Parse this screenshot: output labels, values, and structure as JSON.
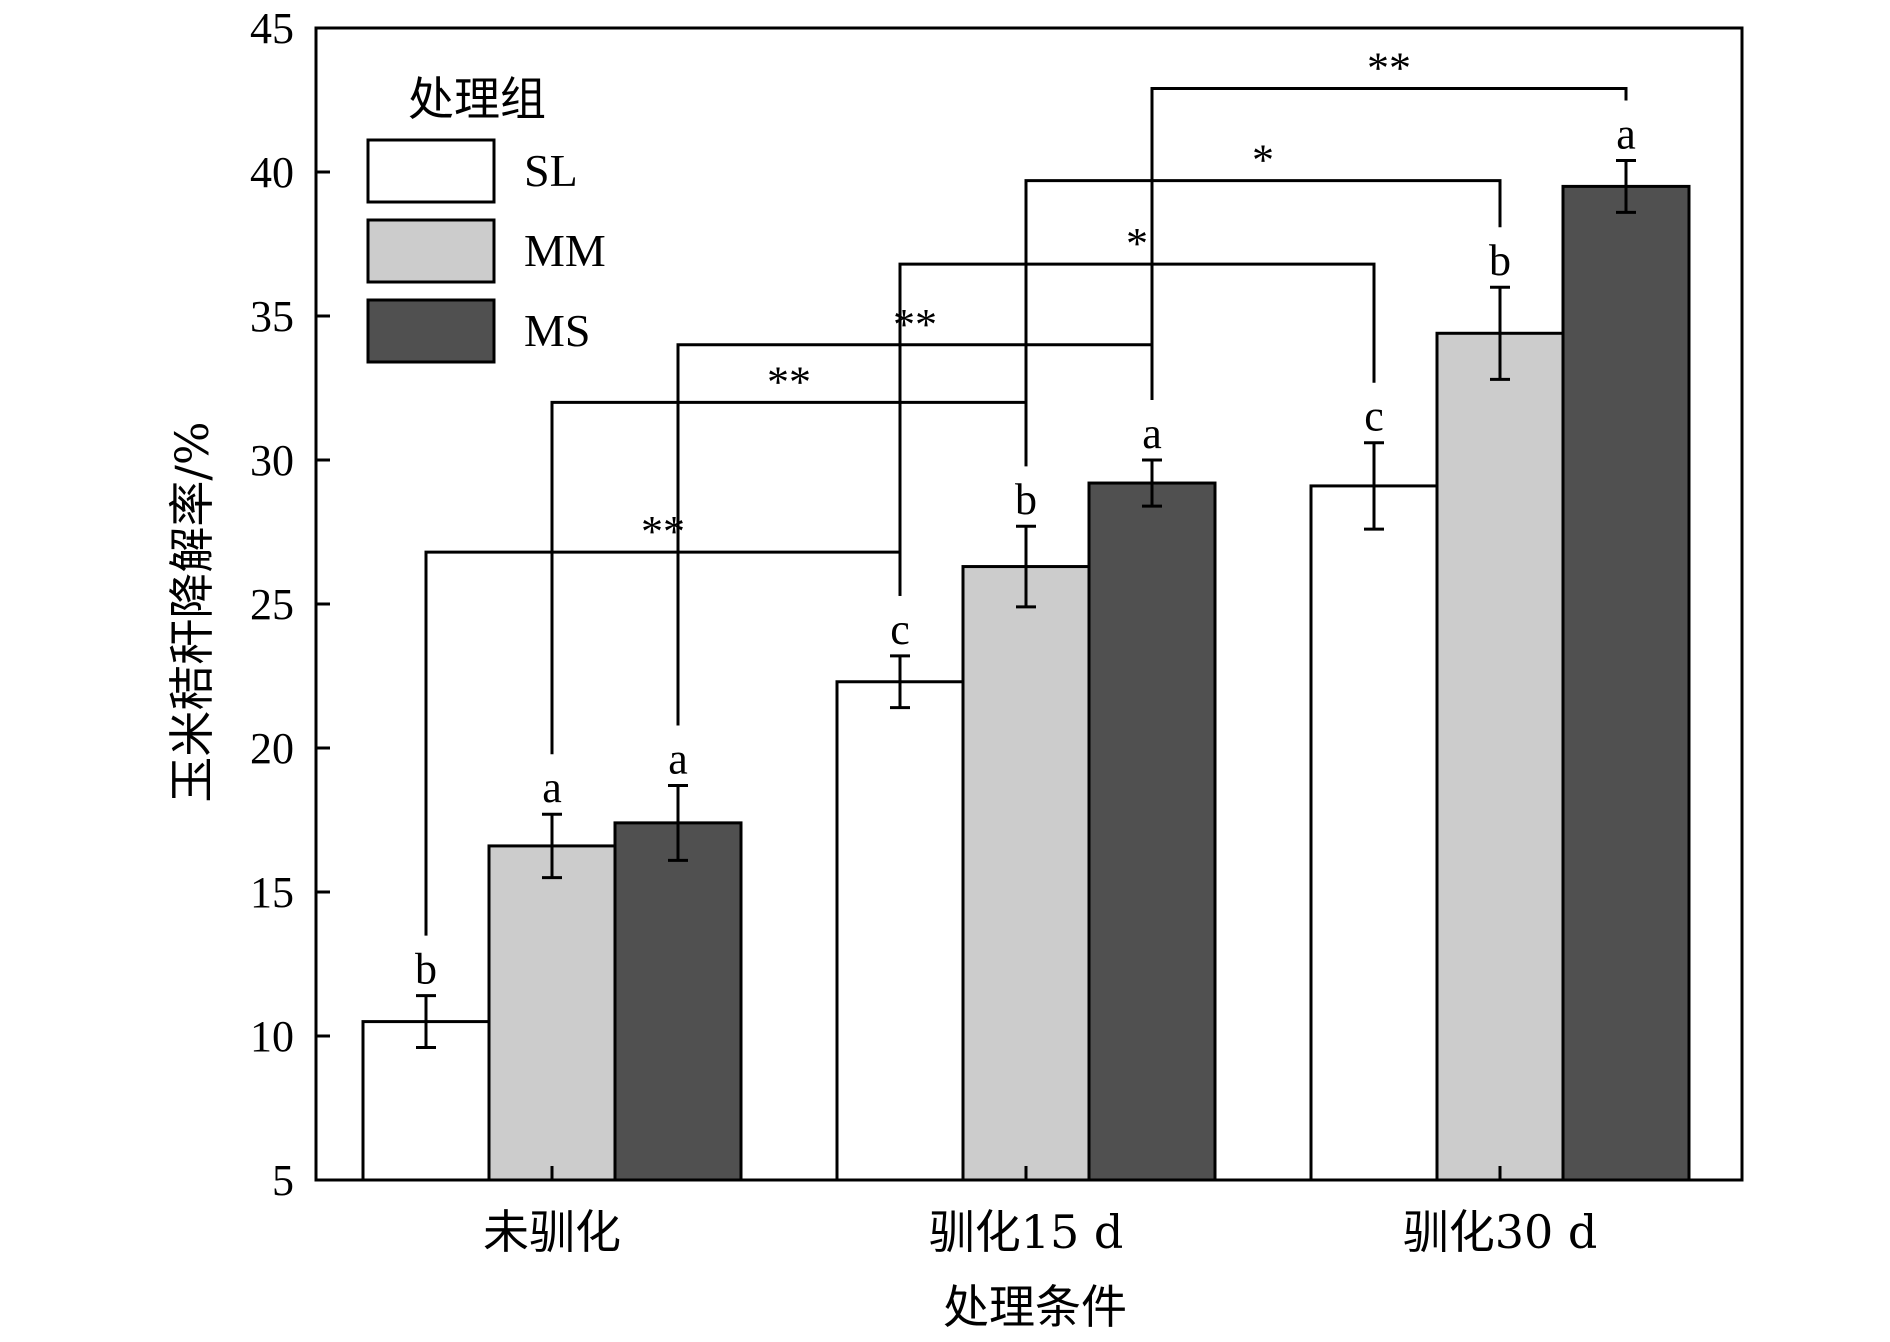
{
  "chart_data": {
    "type": "bar",
    "categories": [
      "未驯化",
      "驯化15 d",
      "驯化30 d"
    ],
    "series": [
      {
        "name": "SL",
        "color": "#ffffff",
        "values": [
          10.5,
          22.3,
          29.1
        ],
        "errors": [
          0.9,
          0.9,
          1.5
        ],
        "letters": [
          "b",
          "c",
          "c"
        ]
      },
      {
        "name": "MM",
        "color": "#cccccc",
        "values": [
          16.6,
          26.3,
          34.4
        ],
        "errors": [
          1.1,
          1.4,
          1.6
        ],
        "letters": [
          "a",
          "b",
          "b"
        ]
      },
      {
        "name": "MS",
        "color": "#505050",
        "values": [
          17.4,
          29.2,
          39.5
        ],
        "errors": [
          1.3,
          0.8,
          0.9
        ],
        "letters": [
          "a",
          "a",
          "a"
        ]
      }
    ],
    "ylim": [
      5,
      45
    ],
    "yticks": [
      5,
      10,
      15,
      20,
      25,
      30,
      35,
      40,
      45
    ],
    "xlabel": "处理条件",
    "ylabel": "玉米秸秆降解率/%",
    "legend": {
      "title": "处理组",
      "position": "top-left"
    },
    "significance": [
      {
        "from": [
          0,
          0
        ],
        "to": [
          1,
          0
        ],
        "label": "**",
        "y": 26.8
      },
      {
        "from": [
          0,
          1
        ],
        "to": [
          1,
          1
        ],
        "label": "**",
        "y": 32.0
      },
      {
        "from": [
          0,
          2
        ],
        "to": [
          1,
          2
        ],
        "label": "**",
        "y": 34.0
      },
      {
        "from": [
          1,
          0
        ],
        "to": [
          2,
          0
        ],
        "label": "*",
        "y": 36.8
      },
      {
        "from": [
          1,
          1
        ],
        "to": [
          2,
          1
        ],
        "label": "*",
        "y": 39.7
      },
      {
        "from": [
          1,
          2
        ],
        "to": [
          2,
          2
        ],
        "label": "**",
        "y": 42.9
      }
    ]
  }
}
